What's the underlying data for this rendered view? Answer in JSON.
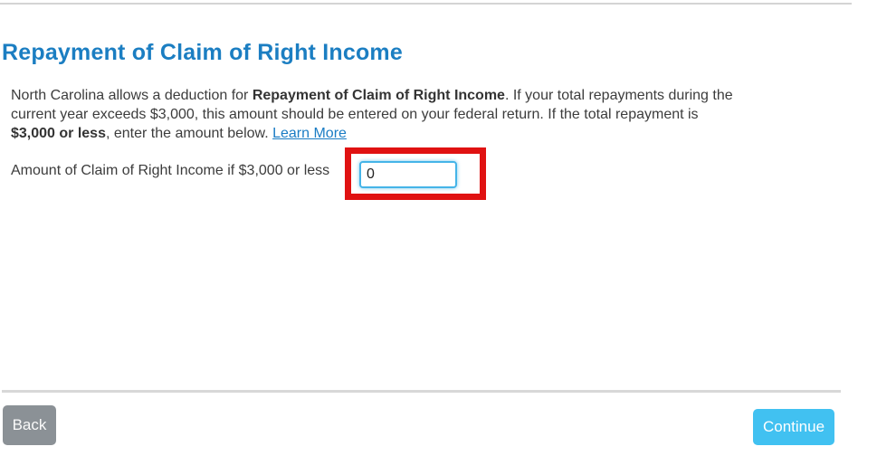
{
  "page": {
    "title": "Repayment of Claim of Right Income"
  },
  "colors": {
    "title_blue": "#1b7ec2",
    "link_blue": "#1a7cc4",
    "continue_button_blue": "#41c1f1",
    "back_button_gray": "#8b9196",
    "annotation_red": "#e01212",
    "input_focus_border_blue": "#45b4e8",
    "divider_gray": "#d8d8d8"
  },
  "intro": {
    "seg1": "North Carolina allows a deduction for ",
    "seg2_bold": "Repayment of Claim of Right Income",
    "seg3": ". If your total repayments during the",
    "line2": "current year exceeds $3,000, this amount should be entered on your federal return. If the total repayment is",
    "seg5_bold": "$3,000 or less",
    "seg6": ", enter the amount below. ",
    "learn_more_label": "Learn More"
  },
  "form": {
    "amount_label": "Amount of Claim of Right Income if $3,000 or less",
    "amount_value": "0"
  },
  "footer": {
    "back_label": "Back",
    "continue_label": "Continue"
  }
}
